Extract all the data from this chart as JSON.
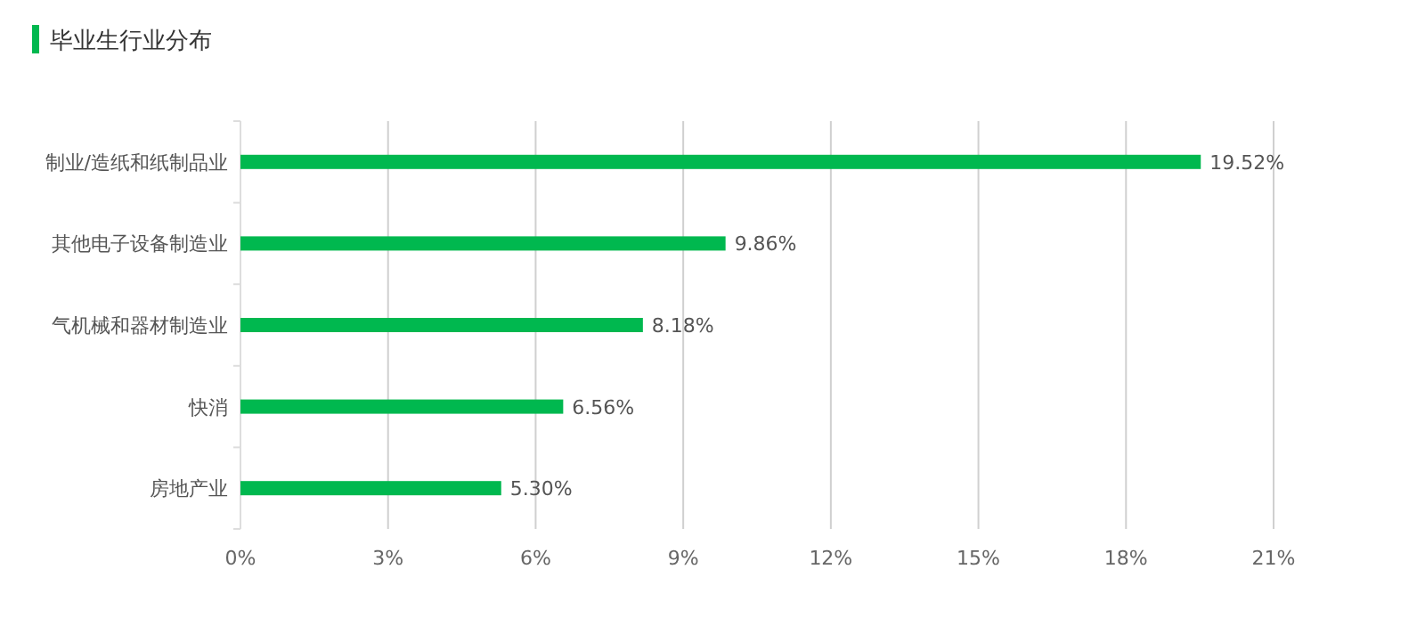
{
  "chart_data": {
    "type": "bar",
    "orientation": "horizontal",
    "title": "毕业生行业分布",
    "categories": [
      "制业/造纸和纸制品业",
      "其他电子设备制造业",
      "气机械和器材制造业",
      "快消",
      "房地产业"
    ],
    "values": [
      19.52,
      9.86,
      8.18,
      6.56,
      5.3
    ],
    "value_labels": [
      "19.52%",
      "9.86%",
      "8.18%",
      "6.56%",
      "5.30%"
    ],
    "color": "#00b84f",
    "xlim": [
      0,
      21
    ],
    "xticks": [
      {
        "value": 0,
        "label": "0%"
      },
      {
        "value": 3,
        "label": "3%"
      },
      {
        "value": 6,
        "label": "6%"
      },
      {
        "value": 9,
        "label": "9%"
      },
      {
        "value": 12,
        "label": "12%"
      },
      {
        "value": 15,
        "label": "15%"
      },
      {
        "value": 18,
        "label": "18%"
      },
      {
        "value": 21,
        "label": "21%"
      }
    ],
    "grid": "x"
  }
}
